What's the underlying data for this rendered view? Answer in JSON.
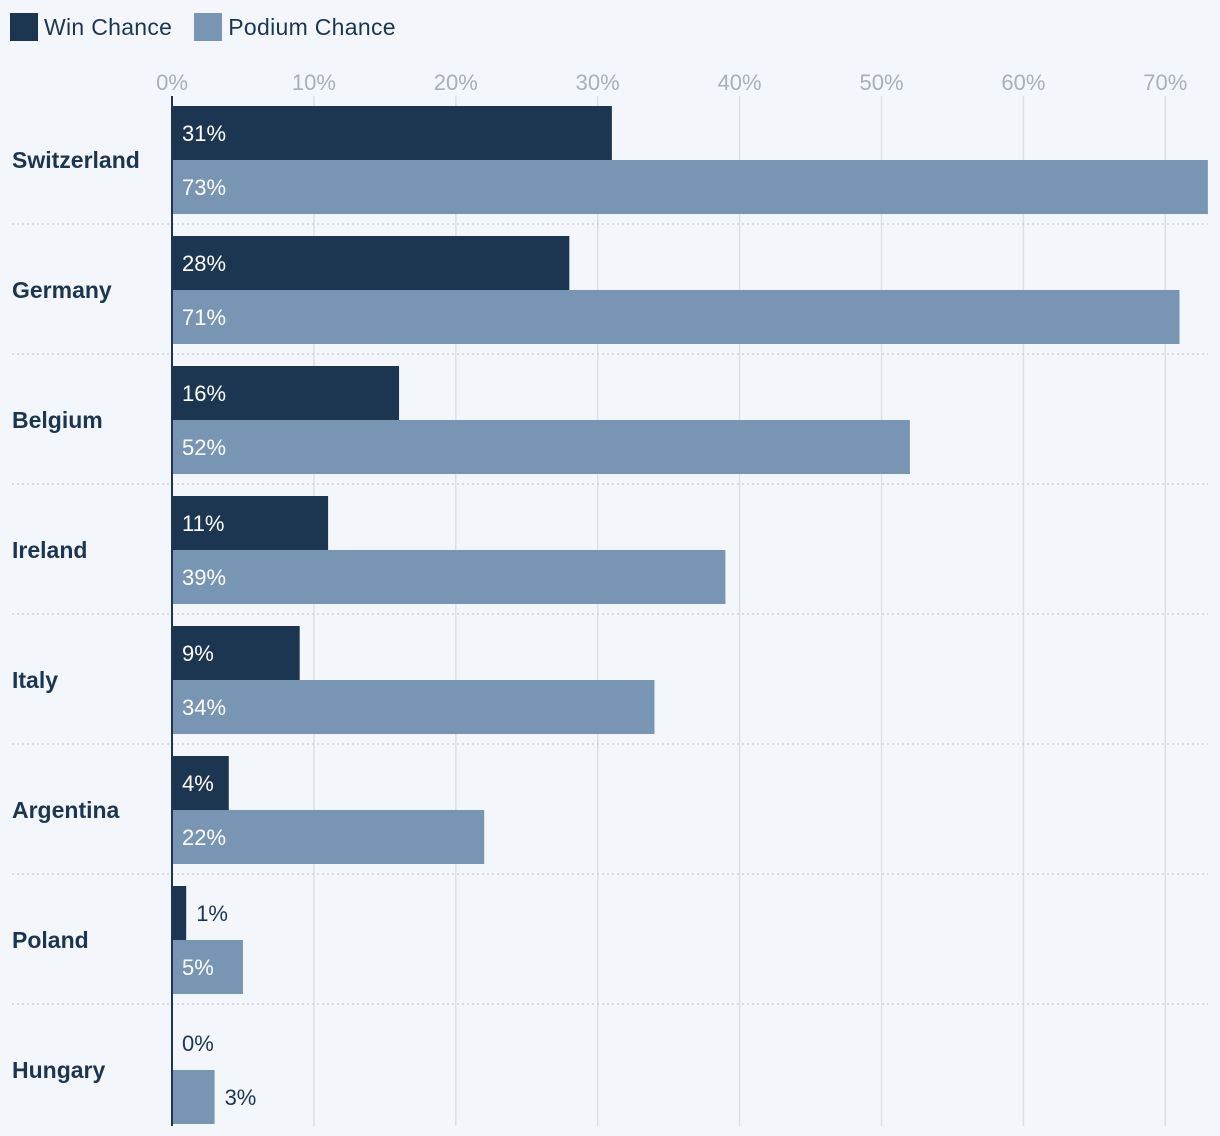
{
  "chart_data": {
    "type": "bar",
    "orientation": "horizontal",
    "categories": [
      "Switzerland",
      "Germany",
      "Belgium",
      "Ireland",
      "Italy",
      "Argentina",
      "Poland",
      "Hungary"
    ],
    "series": [
      {
        "name": "Win Chance",
        "values": [
          31,
          28,
          16,
          11,
          9,
          4,
          1,
          0
        ],
        "color": "#1c3651"
      },
      {
        "name": "Podium Chance",
        "values": [
          73,
          71,
          52,
          39,
          34,
          22,
          5,
          3
        ],
        "color": "#7895b3"
      }
    ],
    "xticks": [
      "0%",
      "10%",
      "20%",
      "30%",
      "40%",
      "50%",
      "60%",
      "70%"
    ],
    "xlim": [
      0,
      73
    ],
    "value_suffix": "%",
    "grid": true,
    "legend": "top-left"
  },
  "legend": {
    "items": [
      {
        "label": "Win Chance",
        "color": "#1c3651"
      },
      {
        "label": "Podium Chance",
        "color": "#7895b3"
      }
    ]
  }
}
